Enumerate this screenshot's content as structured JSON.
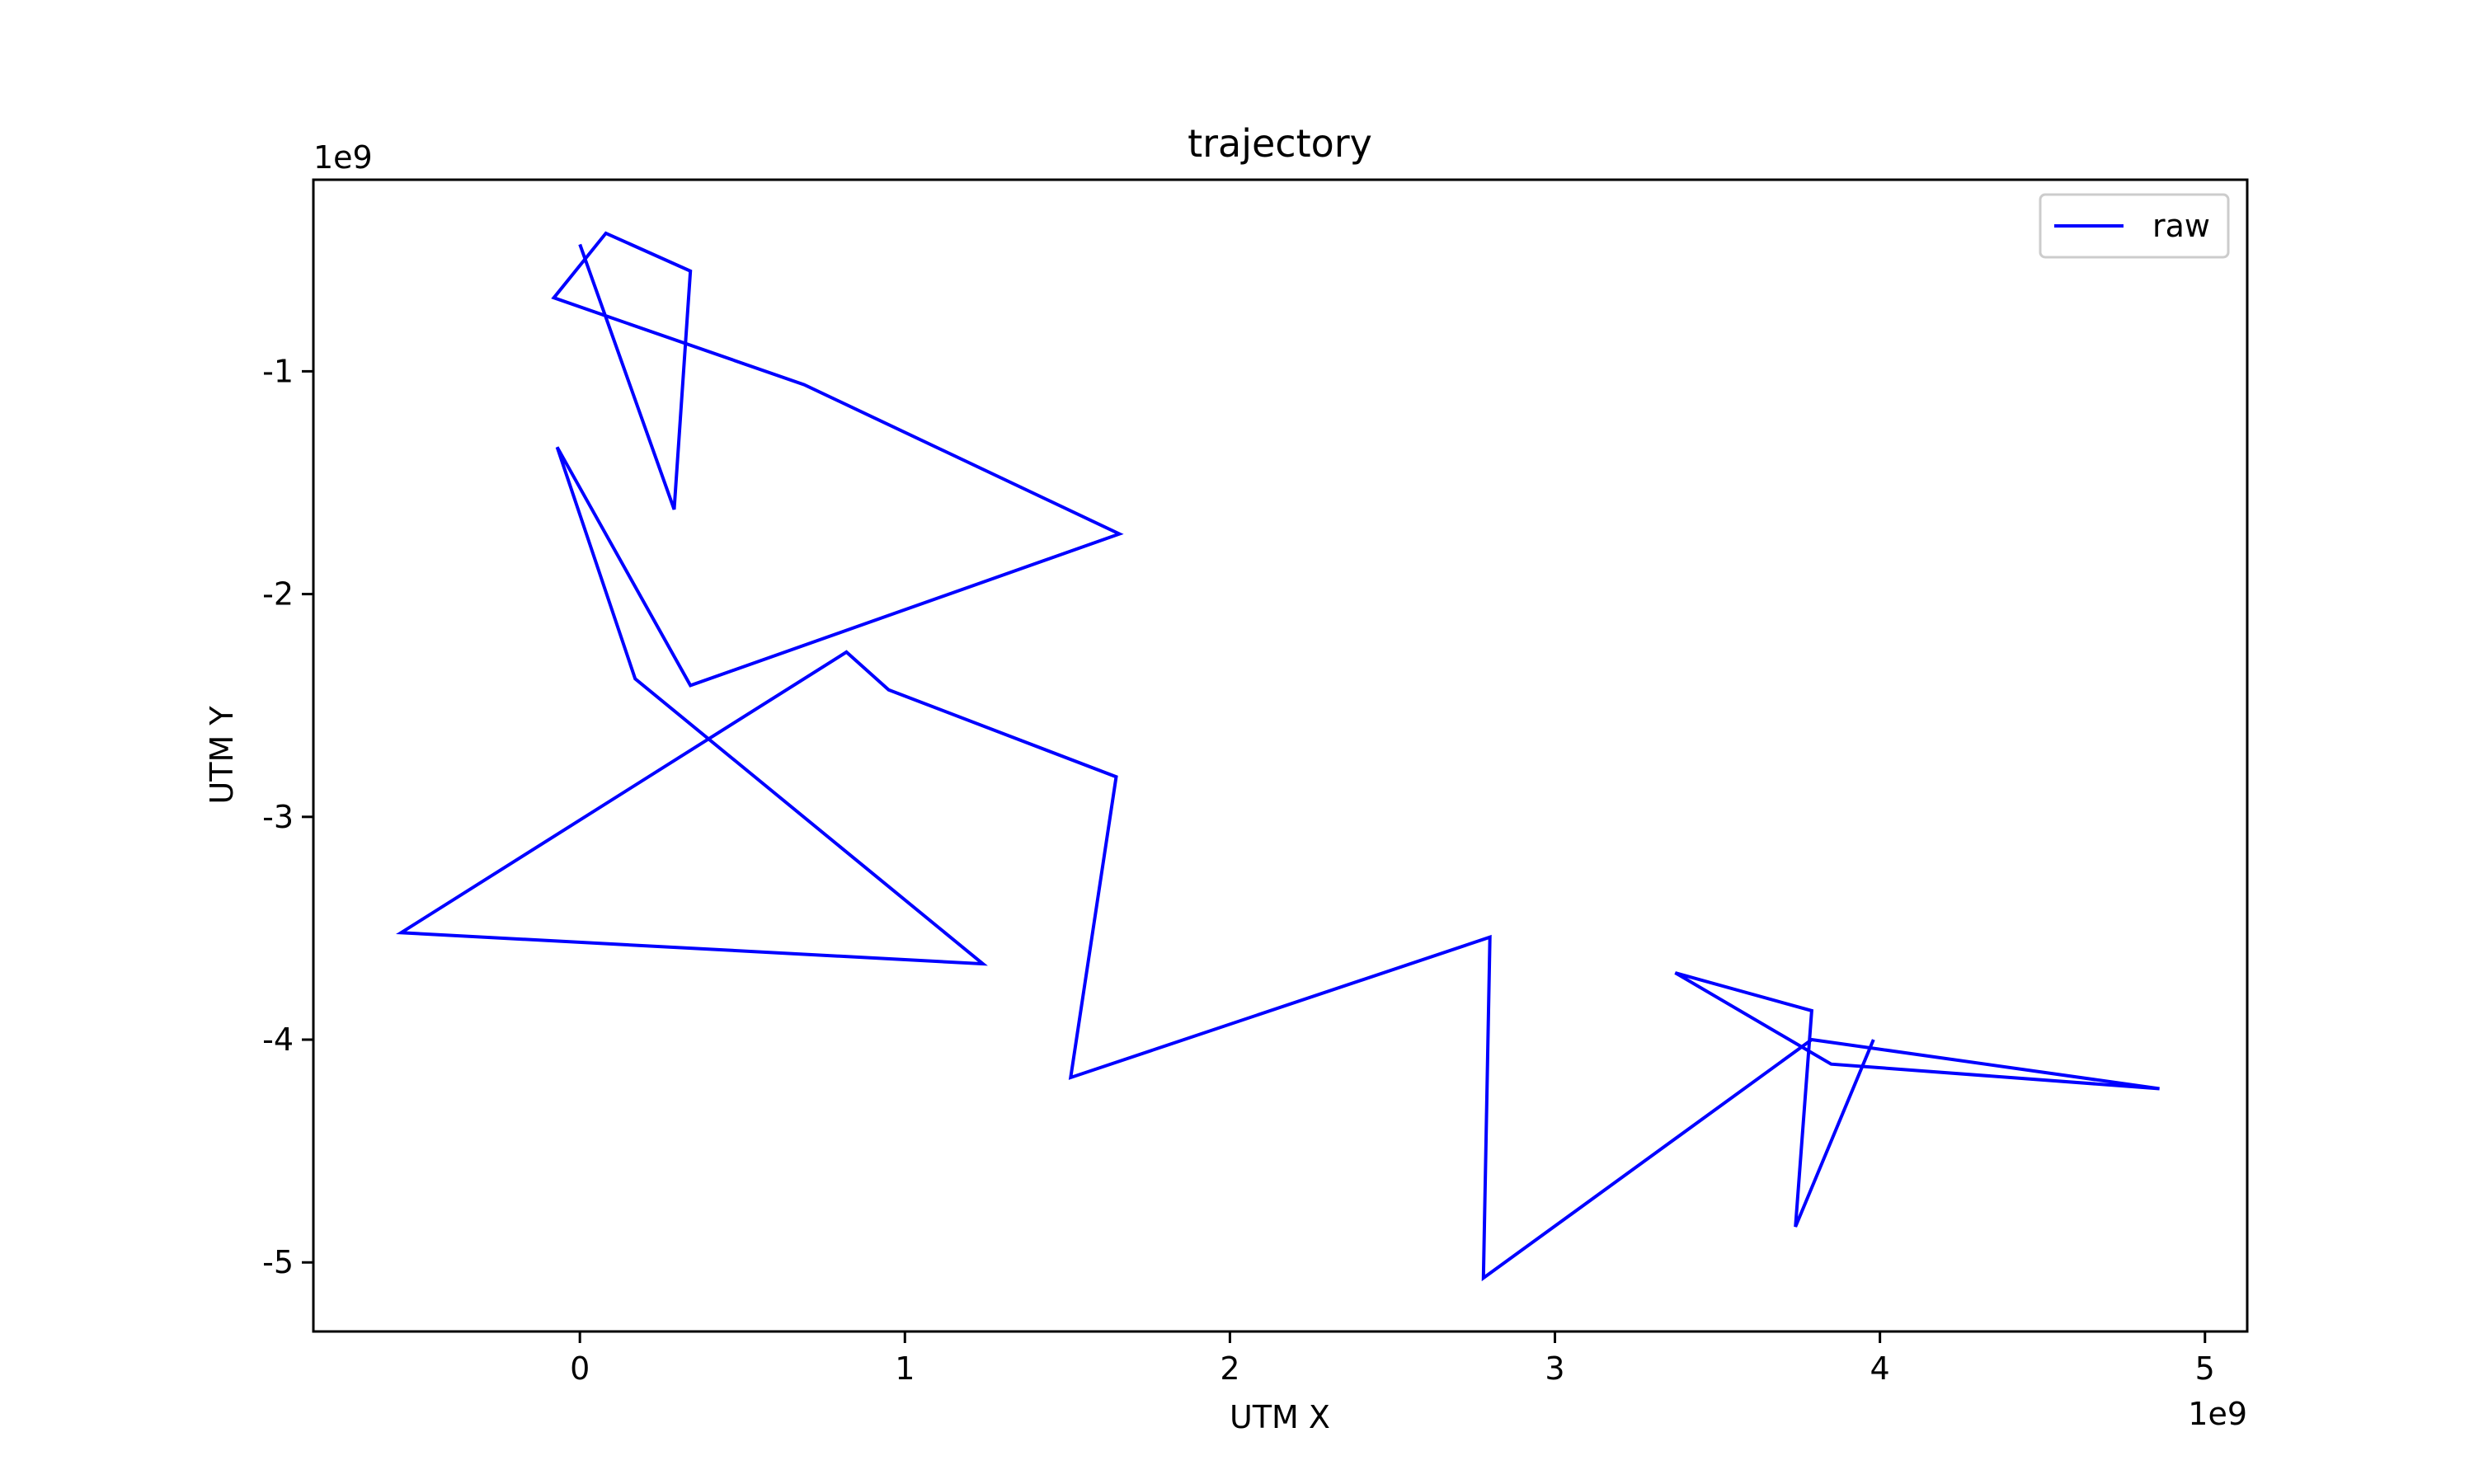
{
  "chart_data": {
    "type": "line",
    "title": "trajectory",
    "xlabel": "UTM X",
    "ylabel": "UTM Y",
    "x_offset_label": "1e9",
    "y_offset_label": "1e9",
    "xlim": [
      -0.82,
      5.13
    ],
    "ylim": [
      -5.31,
      -0.14
    ],
    "xticks": [
      0,
      1,
      2,
      3,
      4,
      5
    ],
    "xtick_labels": [
      "0",
      "1",
      "2",
      "3",
      "4",
      "5"
    ],
    "yticks": [
      -1,
      -2,
      -3,
      -4,
      -5
    ],
    "ytick_labels": [
      "-1",
      "-2",
      "-3",
      "-4",
      "-5"
    ],
    "grid": false,
    "legend_position": "top-right",
    "series": [
      {
        "name": "raw",
        "color": "#0000ff",
        "points": [
          [
            0.0,
            -0.43
          ],
          [
            0.29,
            -1.62
          ],
          [
            0.34,
            -0.55
          ],
          [
            0.08,
            -0.38
          ],
          [
            -0.08,
            -0.67
          ],
          [
            0.69,
            -1.06
          ],
          [
            1.66,
            -1.73
          ],
          [
            0.34,
            -2.41
          ],
          [
            -0.07,
            -1.34
          ],
          [
            0.17,
            -2.38
          ],
          [
            1.24,
            -3.66
          ],
          [
            -0.55,
            -3.52
          ],
          [
            0.82,
            -2.26
          ],
          [
            0.95,
            -2.43
          ],
          [
            1.65,
            -2.82
          ],
          [
            1.51,
            -4.17
          ],
          [
            2.8,
            -3.54
          ],
          [
            2.78,
            -5.07
          ],
          [
            3.79,
            -4.0
          ],
          [
            4.86,
            -4.22
          ],
          [
            3.85,
            -4.11
          ],
          [
            3.37,
            -3.7
          ],
          [
            3.79,
            -3.87
          ],
          [
            3.74,
            -4.84
          ],
          [
            3.98,
            -4.0
          ]
        ]
      }
    ]
  }
}
